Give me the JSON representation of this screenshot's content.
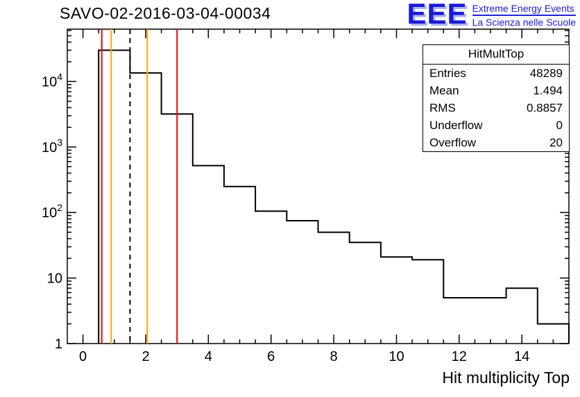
{
  "header": {
    "title": "SAVO-02-2016-03-04-00034"
  },
  "logo": {
    "acronym": "EEE",
    "line1": "Extreme Energy Events",
    "line2": "La Scienza nelle Scuole",
    "color": "#1a1ad6"
  },
  "stats": {
    "title": "HitMultTop",
    "rows": [
      {
        "label": "Entries",
        "value": "48289"
      },
      {
        "label": "Mean",
        "value": "1.494"
      },
      {
        "label": "RMS",
        "value": "0.8857"
      },
      {
        "label": "Underflow",
        "value": "0"
      },
      {
        "label": "Overflow",
        "value": "20"
      }
    ]
  },
  "chart_data": {
    "type": "bar",
    "title": "SAVO-02-2016-03-04-00034",
    "xlabel": "Hit multiplicity Top",
    "ylabel": "",
    "yscale": "log",
    "grid": false,
    "legend": "none",
    "xlim": [
      -0.5,
      15.5
    ],
    "ylim": [
      1,
      63000
    ],
    "bin_width": 1,
    "bins": {
      "centers": [
        1,
        2,
        3,
        4,
        5,
        6,
        7,
        8,
        9,
        10,
        11,
        12,
        13,
        14,
        15
      ],
      "counts": [
        30000,
        13500,
        3200,
        520,
        250,
        105,
        75,
        50,
        35,
        21,
        19,
        5,
        5,
        7,
        2
      ]
    },
    "x_ticks": [
      0,
      2,
      4,
      6,
      8,
      10,
      12,
      14
    ],
    "y_ticks": [
      {
        "value": 1,
        "label": "1"
      },
      {
        "value": 10,
        "label": "10"
      },
      {
        "value": 100,
        "label": "10^2"
      },
      {
        "value": 1000,
        "label": "10^3"
      },
      {
        "value": 10000,
        "label": "10^4"
      }
    ],
    "line_color": "#000000",
    "reference_lines": [
      {
        "x": 0.6,
        "color": "#ff0000",
        "style": "solid",
        "name": "reference-line-red-low"
      },
      {
        "x": 0.9,
        "color": "#ffa500",
        "style": "solid",
        "name": "reference-line-orange-low"
      },
      {
        "x": 1.5,
        "color": "#000000",
        "style": "dashed",
        "name": "reference-line-mean-dashed"
      },
      {
        "x": 2.05,
        "color": "#ffa500",
        "style": "solid",
        "name": "reference-line-orange-high"
      },
      {
        "x": 3.0,
        "color": "#ff0000",
        "style": "solid",
        "name": "reference-line-red-high"
      }
    ]
  }
}
